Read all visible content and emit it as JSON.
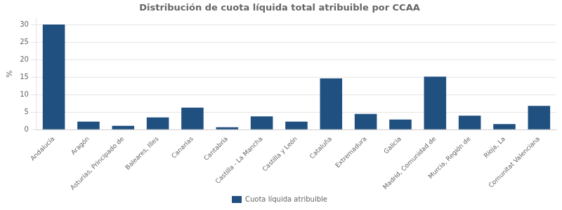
{
  "chart_data": {
    "type": "bar",
    "title": "Distribución de cuota líquida total atribuible por CCAA",
    "categories": [
      "Andalucía",
      "Aragón",
      "Asturias, Principado de",
      "Baleares, Illes",
      "Canarias",
      "Cantabria",
      "Castilla - La Mancha",
      "Castilla y León",
      "Cataluña",
      "Extremadura",
      "Galicia",
      "Madrid, Comunidad de",
      "Murcia, Región de",
      "Rioja, La",
      "Comunitat Valenciana"
    ],
    "series": [
      {
        "name": "Cuota líquida atribuible",
        "color": "#1F5080",
        "values": [
          30.1,
          2.3,
          1.1,
          3.5,
          6.3,
          0.7,
          3.8,
          2.3,
          14.7,
          4.5,
          2.9,
          15.2,
          4.0,
          1.6,
          6.8
        ]
      }
    ],
    "ylabel": "%",
    "ylim": [
      0,
      32
    ],
    "yticks": [
      0,
      5,
      10,
      15,
      20,
      25,
      30
    ],
    "grid": true,
    "legend": "bottom"
  }
}
